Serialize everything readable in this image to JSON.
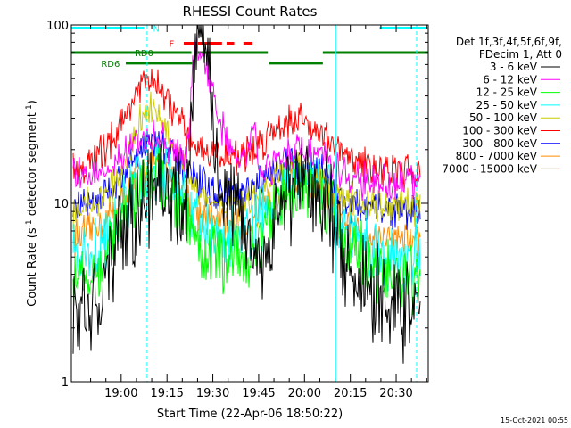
{
  "chart_data": {
    "type": "line",
    "title": "RHESSI Count Rates",
    "xlabel": "Start Time (22-Apr-06 18:50:22)",
    "ylabel": "Count Rate (s⁻¹ detector segment⁻¹)",
    "ylabel_main": "Count Rate (s",
    "ylabel_sup1": "-1",
    "ylabel_mid": " detector segment",
    "ylabel_sup2": "-1",
    "ylabel_end": ")",
    "yscale": "log",
    "ylim": [
      1,
      100
    ],
    "xlim": [
      -16.3,
      100.5
    ],
    "x_units": "minutes after 19:00",
    "x_ticks": [
      {
        "label": "19:00",
        "value": 0
      },
      {
        "label": "19:15",
        "value": 15
      },
      {
        "label": "19:30",
        "value": 30
      },
      {
        "label": "19:45",
        "value": 45
      },
      {
        "label": "20:00",
        "value": 60
      },
      {
        "label": "20:15",
        "value": 75
      },
      {
        "label": "20:30",
        "value": 90
      }
    ],
    "y_ticks": [
      {
        "label": "1",
        "value": 1
      },
      {
        "label": "10",
        "value": 10
      },
      {
        "label": "100",
        "value": 100
      }
    ],
    "legend_header": [
      "Det 1f,3f,4f,5f,6f,9f,",
      "FDecim 1, Att 0"
    ],
    "legend_position": "right",
    "series": [
      {
        "name": "3 - 6 keV",
        "color": "#000000",
        "x": [
          -16,
          -12,
          -8,
          -4,
          0,
          3,
          6,
          9,
          12,
          15,
          18,
          20,
          22,
          23,
          24,
          25,
          26,
          27,
          28,
          29,
          30,
          31,
          32,
          34,
          36,
          38,
          40,
          42,
          44,
          46,
          48,
          50,
          52,
          55,
          58,
          61,
          64,
          66,
          68,
          70,
          74,
          78,
          82,
          86,
          90,
          94,
          98
        ],
        "y": [
          2.3,
          2.6,
          3.0,
          3.8,
          6.0,
          7.5,
          9.0,
          11,
          13,
          12.5,
          11,
          10,
          11,
          35,
          75,
          85,
          90,
          80,
          60,
          45,
          30,
          20,
          16,
          12,
          10,
          9,
          8,
          6,
          5,
          5,
          6,
          8.5,
          10,
          11,
          12,
          12.5,
          12,
          11,
          10,
          7,
          5,
          4,
          3.2,
          2.9,
          2.7,
          2.4,
          2.5
        ]
      },
      {
        "name": "6 - 12 keV",
        "color": "#ff00ff",
        "x": [
          -16,
          -12,
          -8,
          -4,
          0,
          3,
          6,
          9,
          12,
          15,
          18,
          20,
          22,
          23,
          24,
          25,
          26,
          27,
          28,
          30,
          32,
          34,
          36,
          38,
          40,
          42,
          43,
          44,
          45,
          46,
          48,
          50,
          52,
          55,
          58,
          61,
          64,
          66,
          68,
          70,
          74,
          78,
          82,
          86,
          90,
          94,
          98
        ],
        "y": [
          14,
          14.5,
          15,
          16,
          18,
          20,
          22,
          23,
          23,
          21,
          19,
          18,
          20,
          45,
          70,
          75,
          72,
          65,
          55,
          42,
          30,
          24,
          20,
          18,
          17,
          20,
          28,
          24,
          18,
          16,
          16,
          17,
          18,
          19,
          20,
          20,
          19,
          18,
          17,
          15,
          14,
          13.5,
          13,
          13,
          13,
          13.5,
          13.5
        ]
      },
      {
        "name": "12 - 25 keV",
        "color": "#00ff00",
        "x": [
          -16,
          -12,
          -8,
          -4,
          0,
          3,
          6,
          9,
          12,
          15,
          18,
          21,
          24,
          27,
          30,
          33,
          36,
          39,
          42,
          45,
          48,
          51,
          54,
          57,
          60,
          63,
          66,
          68,
          70,
          74,
          78,
          82,
          86,
          90,
          94,
          98
        ],
        "y": [
          3.8,
          4.0,
          4.5,
          5.5,
          7.5,
          10,
          13,
          14,
          15,
          13,
          10,
          8,
          6.5,
          5.5,
          5,
          4.8,
          4.8,
          4.8,
          5,
          6,
          8,
          9.5,
          11,
          12,
          12,
          11.5,
          11,
          10,
          8,
          6,
          5,
          4.3,
          4,
          3.9,
          3.8,
          3.8
        ]
      },
      {
        "name": "25 - 50 keV",
        "color": "#00ffff",
        "x": [
          -16,
          -12,
          -8,
          -4,
          0,
          3,
          6,
          9,
          12,
          15,
          18,
          21,
          24,
          27,
          30,
          33,
          36,
          39,
          42,
          45,
          48,
          51,
          54,
          57,
          60,
          63,
          66,
          68,
          70,
          74,
          78,
          82,
          86,
          90,
          94,
          98
        ],
        "y": [
          4.8,
          5.0,
          5.5,
          6.5,
          9,
          11,
          14,
          15,
          16,
          14,
          12,
          10,
          8,
          7,
          6.5,
          6.3,
          6.3,
          6.5,
          6.8,
          7.5,
          9,
          10.5,
          12,
          13,
          13,
          12.5,
          12,
          11,
          9,
          7,
          6,
          5.5,
          5.2,
          5,
          5,
          5
        ]
      },
      {
        "name": "50 - 100 keV",
        "color": "#cccc00",
        "x": [
          -16,
          -12,
          -8,
          -4,
          0,
          3,
          6,
          9,
          12,
          15,
          18,
          21,
          24,
          27,
          30,
          33,
          36,
          39,
          42,
          45,
          48,
          51,
          54,
          57,
          60,
          63,
          66,
          68,
          70,
          74,
          78,
          82,
          86,
          90,
          94,
          98
        ],
        "y": [
          9,
          9.5,
          10,
          12,
          14,
          20,
          28,
          35,
          33,
          25,
          18,
          15,
          13,
          11,
          10,
          9.5,
          9.5,
          9.5,
          9.8,
          11,
          12.5,
          14,
          15,
          15.5,
          15.5,
          15,
          14,
          13,
          11.5,
          10.5,
          10,
          9.8,
          9.5,
          9.5,
          9.5,
          9.5
        ]
      },
      {
        "name": "100 - 300 keV",
        "color": "#ff0000",
        "x": [
          -16,
          -12,
          -8,
          -4,
          0,
          3,
          6,
          9,
          12,
          15,
          18,
          21,
          24,
          27,
          30,
          33,
          36,
          39,
          42,
          45,
          48,
          51,
          54,
          57,
          60,
          63,
          66,
          68,
          70,
          74,
          78,
          82,
          86,
          90,
          94,
          98
        ],
        "y": [
          15,
          16,
          18,
          22,
          28,
          36,
          44,
          48,
          45,
          38,
          30,
          25,
          22,
          20,
          19,
          18.5,
          18.5,
          18.5,
          19,
          21,
          24,
          27,
          29,
          29.5,
          29,
          27,
          25,
          22,
          20,
          18,
          17,
          16,
          15.5,
          15,
          15,
          15
        ]
      },
      {
        "name": "300 - 800 keV",
        "color": "#0000ff",
        "x": [
          -16,
          -12,
          -8,
          -4,
          0,
          3,
          6,
          9,
          12,
          15,
          18,
          21,
          24,
          27,
          30,
          33,
          36,
          39,
          42,
          45,
          48,
          51,
          54,
          57,
          60,
          63,
          66,
          68,
          70,
          74,
          78,
          82,
          86,
          90,
          94,
          98
        ],
        "y": [
          9.5,
          9.8,
          10.5,
          12,
          14,
          17,
          20,
          22,
          22,
          20,
          17,
          15,
          13.5,
          12.5,
          11.5,
          11,
          11,
          11,
          11.5,
          12.5,
          14,
          15.5,
          16.5,
          17,
          17,
          16.5,
          15.5,
          14,
          11.5,
          10,
          9.5,
          9.3,
          9.2,
          9.1,
          9.1,
          9.2
        ]
      },
      {
        "name": "800 - 7000 keV",
        "color": "#ff8c00",
        "x": [
          -16,
          -12,
          -8,
          -4,
          0,
          3,
          6,
          9,
          12,
          15,
          18,
          21,
          24,
          27,
          30,
          33,
          36,
          39,
          42,
          45,
          48,
          51,
          54,
          57,
          60,
          63,
          66,
          68,
          70,
          74,
          78,
          82,
          86,
          90,
          94,
          98
        ],
        "y": [
          6.5,
          6.8,
          7.5,
          8.5,
          10,
          12.5,
          15,
          17,
          17,
          15.5,
          13,
          11,
          9.5,
          8.5,
          8,
          7.6,
          7.5,
          7.5,
          7.8,
          8.5,
          10,
          11,
          12.5,
          13,
          13,
          12.5,
          12,
          11,
          9,
          7.5,
          7,
          6.7,
          6.5,
          6.4,
          6.3,
          6.3
        ]
      },
      {
        "name": "7000 - 15000 keV",
        "color": "#8b7500",
        "x": [],
        "y": []
      }
    ],
    "attenuator_labels": [
      {
        "text": "N",
        "color": "#00ffff",
        "x": 11.5,
        "level": 96
      },
      {
        "text": "F",
        "color": "#ff0000",
        "x": 16.5,
        "level": 79
      },
      {
        "text": "RD0",
        "color": "#008000",
        "x": 7.5,
        "level": 70
      },
      {
        "text": "RD6",
        "color": "#008000",
        "x": -3.5,
        "level": 61
      }
    ],
    "state_bars": [
      {
        "color": "#00ffff",
        "level": 96,
        "x0": -16.3,
        "x1": 7.5
      },
      {
        "color": "#00ffff",
        "level": 96,
        "x0": 84.5,
        "x1": 100.5
      },
      {
        "color": "#ff0000",
        "level": 79,
        "x0": 20.5,
        "x1": 33
      },
      {
        "color": "#ff0000",
        "level": 79,
        "x0": 34.5,
        "x1": 37
      },
      {
        "color": "#ff0000",
        "level": 79,
        "x0": 40,
        "x1": 43
      },
      {
        "color": "#008000",
        "level": 70,
        "x0": -16.3,
        "x1": 23
      },
      {
        "color": "#008000",
        "level": 70,
        "x0": 24.5,
        "x1": 48
      },
      {
        "color": "#008000",
        "level": 70,
        "x0": 66,
        "x1": 100.5
      },
      {
        "color": "#008000",
        "level": 61,
        "x0": 1.5,
        "x1": 23.5
      },
      {
        "color": "#008000",
        "level": 61,
        "x0": 48.5,
        "x1": 66
      }
    ],
    "vlines": [
      {
        "x": -16.3,
        "color": "#00ffff",
        "dashed": false
      },
      {
        "x": 8.5,
        "color": "#00ffff",
        "dashed": true
      },
      {
        "x": 70.2,
        "color": "#00ffff",
        "dashed": false
      },
      {
        "x": 96.7,
        "color": "#00ffff",
        "dashed": true
      }
    ],
    "footer_date": "15-Oct-2021 00:55"
  }
}
